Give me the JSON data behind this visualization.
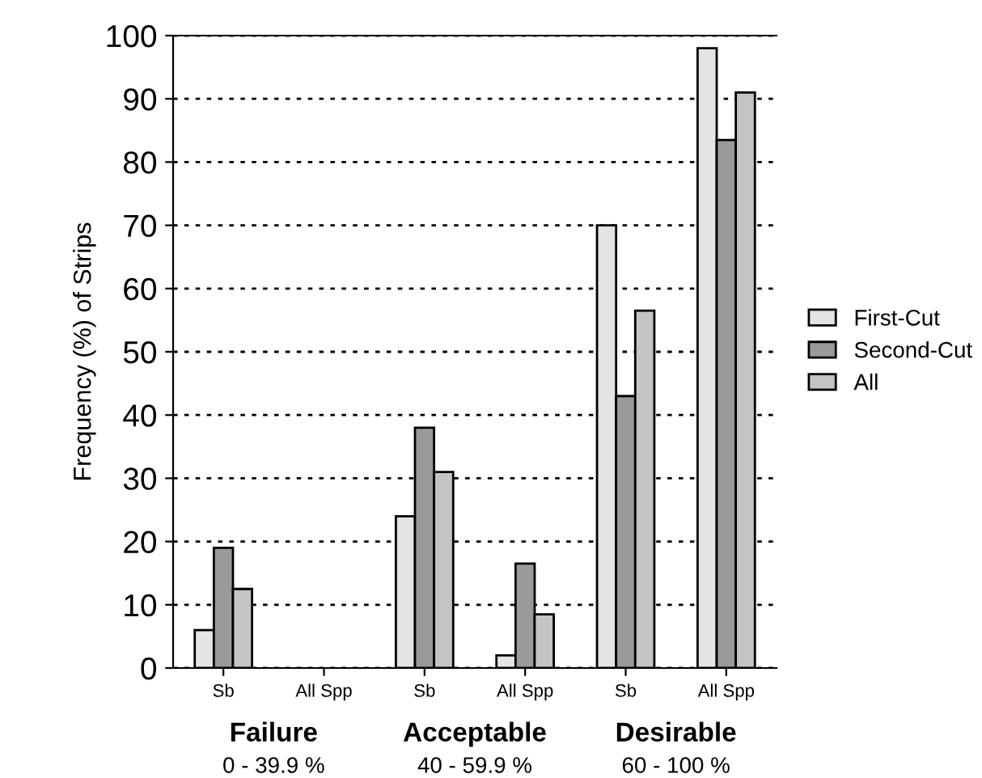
{
  "chart_data": {
    "type": "bar",
    "ylabel": "Frequency (%) of Strips",
    "categories": [
      "Sb",
      "All Spp",
      "Sb",
      "All Spp",
      "Sb",
      "All Spp"
    ],
    "series": [
      {
        "name": "First-Cut",
        "color": "#e4e4e4",
        "values": [
          6,
          null,
          24,
          2,
          70,
          98
        ]
      },
      {
        "name": "Second-Cut",
        "color": "#9a9a9a",
        "values": [
          19,
          null,
          38,
          16.5,
          43,
          83.5
        ]
      },
      {
        "name": "All",
        "color": "#c4c4c4",
        "values": [
          12.5,
          null,
          31,
          8.5,
          56.5,
          91
        ]
      }
    ],
    "ylim": [
      0,
      100
    ],
    "yticks": [
      0,
      10,
      20,
      30,
      40,
      50,
      60,
      70,
      80,
      90,
      100
    ],
    "grid": "y",
    "legend": "right",
    "annotations": [
      "Failure",
      "0 - 39.9 %",
      "Acceptable",
      "40 - 59.9 %",
      "Desirable",
      "60 - 100 %"
    ]
  }
}
